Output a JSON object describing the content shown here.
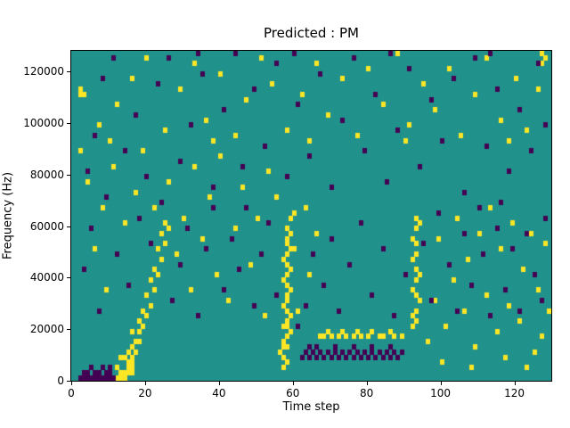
{
  "title": "Predicted : PM",
  "chart_data": {
    "type": "heatmap",
    "title": "Predicted : PM",
    "xlabel": "Time step",
    "ylabel": "Frequency (Hz)",
    "x_range": [
      0,
      130
    ],
    "y_range": [
      0,
      128000
    ],
    "x_ticks": [
      0,
      20,
      40,
      60,
      80,
      100,
      120
    ],
    "y_ticks": [
      0,
      20000,
      40000,
      60000,
      80000,
      100000,
      120000
    ],
    "grid": {
      "cols": 130,
      "rows": 64,
      "hz_per_row": 2000
    },
    "colors": {
      "mid": "#21918c",
      "high": "#fde725",
      "low": "#440154"
    },
    "legend": "none",
    "yellow_cells": [
      [
        12,
        0
      ],
      [
        13,
        0
      ],
      [
        14,
        0
      ],
      [
        13,
        1
      ],
      [
        14,
        1
      ],
      [
        15,
        1
      ],
      [
        16,
        1
      ],
      [
        15,
        2
      ],
      [
        16,
        2
      ],
      [
        12,
        2
      ],
      [
        15,
        3
      ],
      [
        16,
        3
      ],
      [
        13,
        4
      ],
      [
        14,
        4
      ],
      [
        16,
        4
      ],
      [
        15,
        5
      ],
      [
        17,
        5
      ],
      [
        16,
        6
      ],
      [
        18,
        7
      ],
      [
        17,
        7
      ],
      [
        16,
        9
      ],
      [
        18,
        9
      ],
      [
        19,
        10
      ],
      [
        18,
        11
      ],
      [
        20,
        12
      ],
      [
        19,
        13
      ],
      [
        21,
        14
      ],
      [
        20,
        16
      ],
      [
        22,
        17
      ],
      [
        21,
        19
      ],
      [
        23,
        20
      ],
      [
        22,
        21
      ],
      [
        24,
        23
      ],
      [
        23,
        25
      ],
      [
        25,
        26
      ],
      [
        24,
        28
      ],
      [
        26,
        29
      ],
      [
        25,
        30
      ],
      [
        57,
        2
      ],
      [
        58,
        3
      ],
      [
        57,
        4
      ],
      [
        56,
        5
      ],
      [
        57,
        6
      ],
      [
        58,
        6
      ],
      [
        57,
        7
      ],
      [
        58,
        8
      ],
      [
        59,
        9
      ],
      [
        58,
        10
      ],
      [
        57,
        10
      ],
      [
        58,
        11
      ],
      [
        59,
        12
      ],
      [
        58,
        13
      ],
      [
        57,
        14
      ],
      [
        58,
        15
      ],
      [
        58,
        16
      ],
      [
        59,
        17
      ],
      [
        58,
        18
      ],
      [
        57,
        19
      ],
      [
        58,
        20
      ],
      [
        59,
        21
      ],
      [
        58,
        22
      ],
      [
        57,
        23
      ],
      [
        58,
        24
      ],
      [
        59,
        25
      ],
      [
        58,
        26
      ],
      [
        58,
        27
      ],
      [
        59,
        28
      ],
      [
        58,
        29
      ],
      [
        59,
        31
      ],
      [
        60,
        32
      ],
      [
        67,
        8
      ],
      [
        68,
        8
      ],
      [
        69,
        9
      ],
      [
        70,
        8
      ],
      [
        72,
        8
      ],
      [
        73,
        9
      ],
      [
        74,
        8
      ],
      [
        76,
        8
      ],
      [
        77,
        9
      ],
      [
        78,
        8
      ],
      [
        80,
        8
      ],
      [
        81,
        9
      ],
      [
        83,
        8
      ],
      [
        84,
        8
      ],
      [
        86,
        9
      ],
      [
        87,
        8
      ],
      [
        89,
        8
      ],
      [
        92,
        10
      ],
      [
        93,
        11
      ],
      [
        92,
        12
      ],
      [
        93,
        13
      ],
      [
        94,
        15
      ],
      [
        93,
        16
      ],
      [
        92,
        17
      ],
      [
        93,
        19
      ],
      [
        94,
        20
      ],
      [
        93,
        21
      ],
      [
        92,
        23
      ],
      [
        93,
        24
      ],
      [
        93,
        26
      ],
      [
        92,
        27
      ],
      [
        93,
        29
      ],
      [
        94,
        30
      ],
      [
        93,
        31
      ],
      [
        2,
        44
      ],
      [
        4,
        38
      ],
      [
        6,
        25
      ],
      [
        8,
        33
      ],
      [
        9,
        17
      ],
      [
        11,
        41
      ],
      [
        14,
        30
      ],
      [
        17,
        36
      ],
      [
        19,
        44
      ],
      [
        22,
        33
      ],
      [
        26,
        38
      ],
      [
        28,
        24
      ],
      [
        30,
        31
      ],
      [
        32,
        17
      ],
      [
        33,
        41
      ],
      [
        35,
        27
      ],
      [
        37,
        35
      ],
      [
        39,
        20
      ],
      [
        40,
        43
      ],
      [
        42,
        15
      ],
      [
        44,
        29
      ],
      [
        46,
        37
      ],
      [
        48,
        22
      ],
      [
        50,
        31
      ],
      [
        52,
        12
      ],
      [
        53,
        40
      ],
      [
        55,
        35
      ],
      [
        60,
        25
      ],
      [
        61,
        13
      ],
      [
        63,
        33
      ],
      [
        64,
        20
      ],
      [
        66,
        28
      ],
      [
        96,
        7
      ],
      [
        98,
        15
      ],
      [
        99,
        27
      ],
      [
        101,
        10
      ],
      [
        103,
        19
      ],
      [
        104,
        31
      ],
      [
        106,
        13
      ],
      [
        107,
        23
      ],
      [
        109,
        6
      ],
      [
        110,
        28
      ],
      [
        112,
        16
      ],
      [
        113,
        33
      ],
      [
        115,
        9
      ],
      [
        116,
        25
      ],
      [
        118,
        14
      ],
      [
        119,
        30
      ],
      [
        121,
        11
      ],
      [
        122,
        21
      ],
      [
        124,
        28
      ],
      [
        125,
        5
      ],
      [
        126,
        17
      ],
      [
        128,
        26
      ],
      [
        129,
        13
      ],
      [
        100,
        3
      ],
      [
        108,
        2
      ],
      [
        117,
        4
      ],
      [
        123,
        2
      ],
      [
        127,
        8
      ],
      [
        2,
        55
      ],
      [
        3,
        55
      ],
      [
        2,
        56
      ],
      [
        7,
        49
      ],
      [
        12,
        53
      ],
      [
        16,
        58
      ],
      [
        20,
        62
      ],
      [
        25,
        48
      ],
      [
        29,
        56
      ],
      [
        33,
        61
      ],
      [
        36,
        50
      ],
      [
        40,
        59
      ],
      [
        44,
        47
      ],
      [
        47,
        54
      ],
      [
        51,
        62
      ],
      [
        54,
        57
      ],
      [
        58,
        48
      ],
      [
        62,
        55
      ],
      [
        66,
        61
      ],
      [
        69,
        51
      ],
      [
        73,
        58
      ],
      [
        77,
        47
      ],
      [
        80,
        60
      ],
      [
        84,
        53
      ],
      [
        88,
        63
      ],
      [
        91,
        49
      ],
      [
        95,
        57
      ],
      [
        98,
        52
      ],
      [
        102,
        60
      ],
      [
        105,
        47
      ],
      [
        109,
        55
      ],
      [
        112,
        62
      ],
      [
        116,
        50
      ],
      [
        120,
        58
      ],
      [
        123,
        48
      ],
      [
        126,
        56
      ],
      [
        127,
        61
      ],
      [
        128,
        62
      ],
      [
        127,
        63
      ],
      [
        118,
        46
      ],
      [
        90,
        46
      ],
      [
        64,
        46
      ],
      [
        38,
        46
      ],
      [
        10,
        46
      ]
    ],
    "purple_cells": [
      [
        2,
        0
      ],
      [
        3,
        0
      ],
      [
        4,
        0
      ],
      [
        5,
        0
      ],
      [
        6,
        0
      ],
      [
        7,
        0
      ],
      [
        8,
        0
      ],
      [
        9,
        0
      ],
      [
        10,
        0
      ],
      [
        11,
        0
      ],
      [
        3,
        1
      ],
      [
        4,
        1
      ],
      [
        6,
        1
      ],
      [
        7,
        1
      ],
      [
        9,
        1
      ],
      [
        10,
        1
      ],
      [
        5,
        2
      ],
      [
        8,
        2
      ],
      [
        10,
        2
      ],
      [
        62,
        4
      ],
      [
        63,
        5
      ],
      [
        64,
        4
      ],
      [
        65,
        5
      ],
      [
        66,
        4
      ],
      [
        67,
        5
      ],
      [
        68,
        4
      ],
      [
        69,
        5
      ],
      [
        70,
        4
      ],
      [
        71,
        5
      ],
      [
        72,
        4
      ],
      [
        73,
        5
      ],
      [
        74,
        4
      ],
      [
        75,
        5
      ],
      [
        76,
        4
      ],
      [
        77,
        5
      ],
      [
        78,
        4
      ],
      [
        79,
        5
      ],
      [
        80,
        4
      ],
      [
        81,
        5
      ],
      [
        82,
        4
      ],
      [
        83,
        5
      ],
      [
        84,
        4
      ],
      [
        85,
        5
      ],
      [
        86,
        4
      ],
      [
        87,
        5
      ],
      [
        88,
        4
      ],
      [
        89,
        5
      ],
      [
        66,
        6
      ],
      [
        71,
        6
      ],
      [
        76,
        6
      ],
      [
        81,
        6
      ],
      [
        86,
        6
      ],
      [
        64,
        6
      ],
      [
        3,
        21
      ],
      [
        5,
        29
      ],
      [
        7,
        13
      ],
      [
        9,
        35
      ],
      [
        12,
        24
      ],
      [
        15,
        18
      ],
      [
        18,
        31
      ],
      [
        21,
        26
      ],
      [
        24,
        34
      ],
      [
        27,
        15
      ],
      [
        29,
        22
      ],
      [
        31,
        29
      ],
      [
        34,
        12
      ],
      [
        36,
        25
      ],
      [
        38,
        33
      ],
      [
        41,
        17
      ],
      [
        43,
        27
      ],
      [
        45,
        21
      ],
      [
        47,
        33
      ],
      [
        49,
        14
      ],
      [
        51,
        24
      ],
      [
        53,
        30
      ],
      [
        55,
        16
      ],
      [
        61,
        10
      ],
      [
        63,
        14
      ],
      [
        65,
        24
      ],
      [
        68,
        18
      ],
      [
        70,
        27
      ],
      [
        72,
        13
      ],
      [
        75,
        22
      ],
      [
        78,
        30
      ],
      [
        81,
        16
      ],
      [
        84,
        25
      ],
      [
        87,
        12
      ],
      [
        90,
        20
      ],
      [
        95,
        26
      ],
      [
        97,
        15
      ],
      [
        99,
        32
      ],
      [
        102,
        22
      ],
      [
        104,
        13
      ],
      [
        106,
        28
      ],
      [
        108,
        18
      ],
      [
        111,
        24
      ],
      [
        113,
        12
      ],
      [
        115,
        29
      ],
      [
        117,
        17
      ],
      [
        119,
        25
      ],
      [
        121,
        13
      ],
      [
        123,
        28
      ],
      [
        125,
        20
      ],
      [
        127,
        15
      ],
      [
        128,
        31
      ],
      [
        110,
        33
      ],
      [
        116,
        34
      ],
      [
        4,
        40
      ],
      [
        8,
        58
      ],
      [
        11,
        62
      ],
      [
        14,
        44
      ],
      [
        17,
        51
      ],
      [
        20,
        39
      ],
      [
        23,
        57
      ],
      [
        26,
        62
      ],
      [
        29,
        42
      ],
      [
        32,
        49
      ],
      [
        35,
        59
      ],
      [
        38,
        37
      ],
      [
        41,
        52
      ],
      [
        44,
        63
      ],
      [
        46,
        41
      ],
      [
        49,
        56
      ],
      [
        52,
        45
      ],
      [
        55,
        61
      ],
      [
        58,
        39
      ],
      [
        61,
        53
      ],
      [
        64,
        43
      ],
      [
        67,
        59
      ],
      [
        70,
        37
      ],
      [
        73,
        50
      ],
      [
        76,
        62
      ],
      [
        79,
        44
      ],
      [
        82,
        55
      ],
      [
        85,
        38
      ],
      [
        88,
        48
      ],
      [
        91,
        60
      ],
      [
        94,
        41
      ],
      [
        97,
        54
      ],
      [
        100,
        46
      ],
      [
        103,
        58
      ],
      [
        106,
        36
      ],
      [
        109,
        62
      ],
      [
        112,
        45
      ],
      [
        115,
        56
      ],
      [
        118,
        40
      ],
      [
        121,
        52
      ],
      [
        124,
        44
      ],
      [
        126,
        61
      ],
      [
        128,
        49
      ],
      [
        6,
        47
      ],
      [
        34,
        63
      ],
      [
        60,
        63
      ],
      [
        86,
        63
      ],
      [
        113,
        63
      ]
    ]
  }
}
